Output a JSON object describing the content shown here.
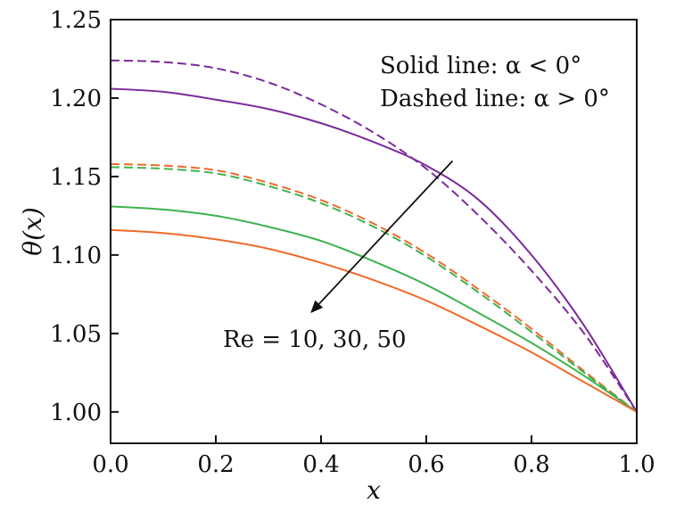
{
  "chart_data": {
    "type": "line",
    "xlabel": "x",
    "ylabel": "θ(x)",
    "xlim": [
      0.0,
      1.0
    ],
    "ylim": [
      0.98,
      1.25
    ],
    "x_ticks": [
      "0.0",
      "0.2",
      "0.4",
      "0.6",
      "0.8",
      "1.0"
    ],
    "y_ticks": [
      "1.00",
      "1.05",
      "1.10",
      "1.15",
      "1.20",
      "1.25"
    ],
    "grid": false,
    "legend_text": [
      "Solid line: α < 0°",
      "Dashed line: α > 0°"
    ],
    "arrow_label": "Re = 10, 30, 50",
    "x": [
      0.0,
      0.1,
      0.2,
      0.3,
      0.4,
      0.5,
      0.6,
      0.7,
      0.8,
      0.9,
      1.0
    ],
    "series": [
      {
        "color": "#7b2a9a",
        "style": "dashed",
        "values": [
          1.224,
          1.223,
          1.219,
          1.21,
          1.196,
          1.178,
          1.155,
          1.125,
          1.09,
          1.05,
          1.0
        ]
      },
      {
        "color": "#7b2a9a",
        "style": "solid",
        "values": [
          1.206,
          1.204,
          1.199,
          1.193,
          1.184,
          1.172,
          1.157,
          1.135,
          1.1,
          1.055,
          1.0
        ]
      },
      {
        "color": "#ef6a2a",
        "style": "dashed",
        "values": [
          1.158,
          1.157,
          1.154,
          1.146,
          1.135,
          1.12,
          1.101,
          1.078,
          1.053,
          1.026,
          1.0
        ]
      },
      {
        "color": "#3fb34f",
        "style": "dashed",
        "values": [
          1.156,
          1.155,
          1.152,
          1.144,
          1.133,
          1.118,
          1.099,
          1.076,
          1.051,
          1.025,
          1.0
        ]
      },
      {
        "color": "#3fb34f",
        "style": "solid",
        "values": [
          1.131,
          1.129,
          1.125,
          1.118,
          1.109,
          1.096,
          1.081,
          1.063,
          1.044,
          1.023,
          1.0
        ]
      },
      {
        "color": "#ef6a2a",
        "style": "solid",
        "values": [
          1.116,
          1.114,
          1.11,
          1.104,
          1.095,
          1.084,
          1.071,
          1.055,
          1.038,
          1.019,
          1.0
        ]
      }
    ],
    "arrow": {
      "from": [
        0.65,
        1.16
      ],
      "to": [
        0.38,
        1.063
      ]
    }
  }
}
